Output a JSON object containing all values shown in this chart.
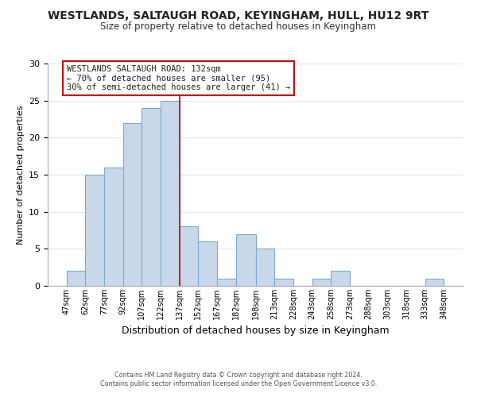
{
  "title": "WESTLANDS, SALTAUGH ROAD, KEYINGHAM, HULL, HU12 9RT",
  "subtitle": "Size of property relative to detached houses in Keyingham",
  "xlabel": "Distribution of detached houses by size in Keyingham",
  "ylabel": "Number of detached properties",
  "bar_color": "#c8d8ea",
  "highlight_edge_color": "#cc0000",
  "bar_edge_color": "#7aaace",
  "bins": [
    47,
    62,
    77,
    92,
    107,
    122,
    137,
    152,
    167,
    182,
    198,
    213,
    228,
    243,
    258,
    273,
    288,
    303,
    318,
    333,
    348
  ],
  "bin_labels": [
    "47sqm",
    "62sqm",
    "77sqm",
    "92sqm",
    "107sqm",
    "122sqm",
    "137sqm",
    "152sqm",
    "167sqm",
    "182sqm",
    "198sqm",
    "213sqm",
    "228sqm",
    "243sqm",
    "258sqm",
    "273sqm",
    "288sqm",
    "303sqm",
    "318sqm",
    "333sqm",
    "348sqm"
  ],
  "counts": [
    2,
    15,
    16,
    22,
    24,
    25,
    8,
    6,
    1,
    7,
    5,
    1,
    0,
    1,
    2,
    0,
    0,
    0,
    0,
    1
  ],
  "highlight_bin_index": 5,
  "annotation_title": "WESTLANDS SALTAUGH ROAD: 132sqm",
  "annotation_line1": "← 70% of detached houses are smaller (95)",
  "annotation_line2": "30% of semi-detached houses are larger (41) →",
  "ylim": [
    0,
    30
  ],
  "yticks": [
    0,
    5,
    10,
    15,
    20,
    25,
    30
  ],
  "footer1": "Contains HM Land Registry data © Crown copyright and database right 2024.",
  "footer2": "Contains public sector information licensed under the Open Government Licence v3.0.",
  "background_color": "#ffffff",
  "grid_color": "#dde8f0"
}
